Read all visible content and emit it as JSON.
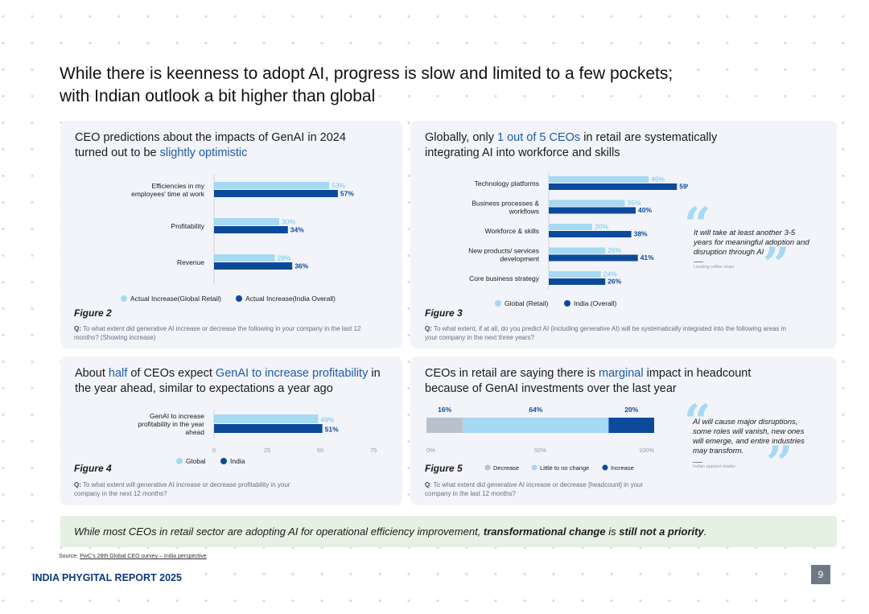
{
  "title": {
    "line1": "While there is keenness to adopt AI, progress is slow and limited to a few pockets;",
    "line2": "with Indian outlook a bit higher than global"
  },
  "colors": {
    "global": "#a6d9f2",
    "india": "#0c4a9c",
    "decrease": "#b9c2cc",
    "accent": "#1e5aa8"
  },
  "panel2": {
    "title_pre": "CEO predictions about the impacts of GenAI in 2024 turned out to be ",
    "title_hl": "slightly optimistic",
    "figure": "Figure 2",
    "question_q": "Q:",
    "question": " To what extent did generative AI increase or decrease the following in your company in the last 12 months? (Showing increase)"
  },
  "panel3": {
    "title_pre": "Globally, only ",
    "title_hl": "1 out of 5 CEOs",
    "title_post": " in retail are systematically integrating AI into workforce and skills",
    "figure": "Figure 3",
    "question_q": "Q:",
    "question": " To what extent, if at all, do you predict AI (including generative AI) will be systematically integrated into the following areas in your company in the next three years?",
    "quote": "It will take at least another 3-5 years for meaningful adoption and disruption through AI",
    "quote_source": "Leading coffee chain"
  },
  "panel4": {
    "title_pre": "About ",
    "title_hl1": "half",
    "title_mid": " of CEOs expect ",
    "title_hl2": "GenAI to increase profitability",
    "title_post": " in the year ahead, similar to expectations a year ago",
    "figure": "Figure 4",
    "question_q": "Q:",
    "question": " To what extent will generative AI increase or decrease profitability in your company in the next 12 months?"
  },
  "panel5": {
    "title_pre": "CEOs in retail are saying there is ",
    "title_hl": "marginal",
    "title_post": " impact in headcount because of GenAI investments over the last year",
    "figure": "Figure 5",
    "question_q": "Q",
    "question": ": To what extent did generative AI increase or decrease [headcount] in your company in the last 12 months?",
    "quote": "AI will cause major disruptions, some roles will vanish, new ones will emerge, and entire industries may transform.",
    "quote_source": "Indian apparel retailer"
  },
  "chart_data": [
    {
      "type": "bar",
      "orientation": "horizontal",
      "categories": [
        "Efficiencies in my employees' time at work",
        "Profitability",
        "Revenue"
      ],
      "series": [
        {
          "name": "Actual Increase(Global Retail)",
          "values": [
            53,
            30,
            28
          ]
        },
        {
          "name": "Actual Increase(India Overall)",
          "values": [
            57,
            34,
            36
          ]
        }
      ],
      "value_suffix": "%",
      "legend": "bottom"
    },
    {
      "type": "bar",
      "orientation": "horizontal",
      "categories": [
        "Technology platforms",
        "Business processes & workflows",
        "Workforce & skills",
        "New products/ services development",
        "Core business strategy"
      ],
      "series": [
        {
          "name": "Global (Retail)",
          "values": [
            46,
            35,
            20,
            26,
            24
          ]
        },
        {
          "name": "India (Overall)",
          "values": [
            59,
            40,
            38,
            41,
            26
          ]
        }
      ],
      "value_suffix": "%",
      "legend": "bottom"
    },
    {
      "type": "bar",
      "orientation": "horizontal",
      "categories": [
        "GenAI to increase profitability in the year ahead"
      ],
      "series": [
        {
          "name": "Global",
          "values": [
            49
          ]
        },
        {
          "name": "India",
          "values": [
            51
          ]
        }
      ],
      "value_suffix": "%",
      "xlim": [
        0,
        75
      ],
      "xticks": [
        "0",
        "25",
        "50",
        "75"
      ],
      "legend": "bottom"
    },
    {
      "type": "bar",
      "orientation": "stacked-horizontal",
      "series": [
        {
          "name": "Decrease",
          "values": [
            16
          ]
        },
        {
          "name": "Little to no change",
          "values": [
            64
          ]
        },
        {
          "name": "Increase",
          "values": [
            20
          ]
        }
      ],
      "value_suffix": "%",
      "xticks": [
        "0%",
        "50%",
        "100%"
      ],
      "legend": "bottom"
    }
  ],
  "summary": {
    "pre": "While most CEOs in retail sector are adopting AI for operational efficiency improvement, ",
    "b1": "transformational change",
    "mid": " is ",
    "b2": "still not a priority",
    "post": "."
  },
  "source": {
    "label": "Source: ",
    "link": "PwC's 28th Global CEO survey – India perspective"
  },
  "footer": {
    "title": "INDIA PHYGITAL REPORT 2025",
    "page": "9"
  }
}
